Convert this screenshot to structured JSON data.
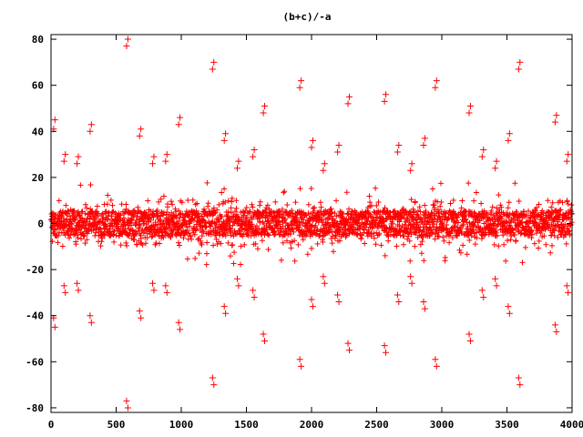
{
  "chart_data": {
    "type": "scatter",
    "title": "(b+c)/-a",
    "xlabel": "",
    "ylabel": "",
    "xlim": [
      0,
      4000
    ],
    "ylim": [
      -82,
      82
    ],
    "x_ticks": [
      0,
      500,
      1000,
      1500,
      2000,
      2500,
      3000,
      3500,
      4000
    ],
    "y_ticks": [
      -80,
      -60,
      -40,
      -20,
      0,
      20,
      40,
      60,
      80
    ],
    "grid": false,
    "legend": "none",
    "marker": "plus",
    "color": "#ff0000",
    "series": [
      {
        "name": "",
        "points": [
          [
            20,
            41
          ],
          [
            30,
            45
          ],
          [
            20,
            -41
          ],
          [
            30,
            -45
          ],
          [
            100,
            27
          ],
          [
            110,
            30
          ],
          [
            100,
            -27
          ],
          [
            110,
            -30
          ],
          [
            200,
            26
          ],
          [
            210,
            29
          ],
          [
            200,
            -26
          ],
          [
            210,
            -29
          ],
          [
            300,
            40
          ],
          [
            310,
            43
          ],
          [
            300,
            -40
          ],
          [
            310,
            -43
          ],
          [
            580,
            77
          ],
          [
            590,
            80
          ],
          [
            580,
            -77
          ],
          [
            590,
            -80
          ],
          [
            680,
            38
          ],
          [
            690,
            41
          ],
          [
            680,
            -38
          ],
          [
            690,
            -41
          ],
          [
            780,
            26
          ],
          [
            790,
            29
          ],
          [
            780,
            -26
          ],
          [
            790,
            -29
          ],
          [
            880,
            27
          ],
          [
            890,
            30
          ],
          [
            880,
            -27
          ],
          [
            890,
            -30
          ],
          [
            980,
            43
          ],
          [
            990,
            46
          ],
          [
            980,
            -43
          ],
          [
            990,
            -46
          ],
          [
            1240,
            67
          ],
          [
            1250,
            70
          ],
          [
            1240,
            -67
          ],
          [
            1250,
            -70
          ],
          [
            1330,
            36
          ],
          [
            1340,
            39
          ],
          [
            1330,
            -36
          ],
          [
            1340,
            -39
          ],
          [
            1430,
            24
          ],
          [
            1440,
            27
          ],
          [
            1430,
            -24
          ],
          [
            1440,
            -27
          ],
          [
            1550,
            29
          ],
          [
            1560,
            32
          ],
          [
            1550,
            -29
          ],
          [
            1560,
            -32
          ],
          [
            1630,
            48
          ],
          [
            1640,
            51
          ],
          [
            1630,
            -48
          ],
          [
            1640,
            -51
          ],
          [
            1910,
            59
          ],
          [
            1920,
            62
          ],
          [
            1910,
            -59
          ],
          [
            1920,
            -62
          ],
          [
            2000,
            33
          ],
          [
            2010,
            36
          ],
          [
            2000,
            -33
          ],
          [
            2010,
            -36
          ],
          [
            2090,
            23
          ],
          [
            2100,
            26
          ],
          [
            2090,
            -23
          ],
          [
            2100,
            -26
          ],
          [
            2200,
            31
          ],
          [
            2210,
            34
          ],
          [
            2200,
            -31
          ],
          [
            2210,
            -34
          ],
          [
            2280,
            52
          ],
          [
            2290,
            55
          ],
          [
            2280,
            -52
          ],
          [
            2290,
            -55
          ],
          [
            2560,
            53
          ],
          [
            2570,
            56
          ],
          [
            2560,
            -53
          ],
          [
            2570,
            -56
          ],
          [
            2660,
            31
          ],
          [
            2670,
            34
          ],
          [
            2660,
            -31
          ],
          [
            2670,
            -34
          ],
          [
            2760,
            23
          ],
          [
            2770,
            26
          ],
          [
            2760,
            -23
          ],
          [
            2770,
            -26
          ],
          [
            2860,
            34
          ],
          [
            2870,
            37
          ],
          [
            2860,
            -34
          ],
          [
            2870,
            -37
          ],
          [
            2950,
            59
          ],
          [
            2960,
            62
          ],
          [
            2950,
            -59
          ],
          [
            2960,
            -62
          ],
          [
            3210,
            48
          ],
          [
            3220,
            51
          ],
          [
            3210,
            -48
          ],
          [
            3220,
            -51
          ],
          [
            3310,
            29
          ],
          [
            3320,
            32
          ],
          [
            3310,
            -29
          ],
          [
            3320,
            -32
          ],
          [
            3410,
            24
          ],
          [
            3420,
            27
          ],
          [
            3410,
            -24
          ],
          [
            3420,
            -27
          ],
          [
            3510,
            36
          ],
          [
            3520,
            39
          ],
          [
            3510,
            -36
          ],
          [
            3520,
            -39
          ],
          [
            3590,
            67
          ],
          [
            3600,
            70
          ],
          [
            3590,
            -67
          ],
          [
            3600,
            -70
          ],
          [
            3870,
            44
          ],
          [
            3880,
            47
          ],
          [
            3870,
            -44
          ],
          [
            3880,
            -47
          ],
          [
            3960,
            27
          ],
          [
            3970,
            30
          ],
          [
            3960,
            -27
          ],
          [
            3970,
            -30
          ]
        ]
      }
    ]
  }
}
